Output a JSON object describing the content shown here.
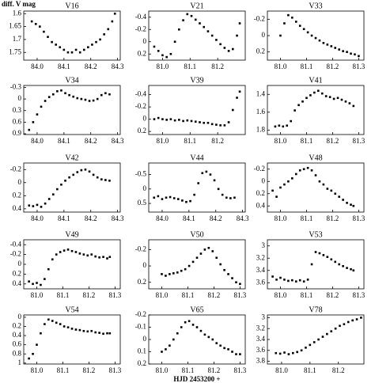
{
  "chart_data": [
    {
      "type": "scatter",
      "title": "V16",
      "ylabel": "diff. V mag",
      "color": "#000000",
      "x": [
        83.98,
        83.995,
        84.01,
        84.025,
        84.04,
        84.055,
        84.07,
        84.085,
        84.1,
        84.115,
        84.13,
        84.145,
        84.16,
        84.175,
        84.19,
        84.205,
        84.22,
        84.235,
        84.25,
        84.265,
        84.28,
        84.29
      ],
      "values": [
        1.63,
        1.64,
        1.65,
        1.67,
        1.69,
        1.71,
        1.72,
        1.73,
        1.74,
        1.75,
        1.75,
        1.74,
        1.75,
        1.74,
        1.73,
        1.72,
        1.71,
        1.7,
        1.68,
        1.66,
        1.63,
        1.6
      ],
      "xlim": [
        83.95,
        84.31
      ],
      "xticks": [
        {
          "value": 84,
          "label": "84.0"
        },
        84.1,
        84.2,
        84.3
      ],
      "ylim": [
        1.78,
        1.59
      ],
      "yticks": [
        1.6,
        1.65,
        1.7,
        1.75
      ]
    },
    {
      "type": "scatter",
      "title": "V21",
      "color": "#000000",
      "x": [
        80.97,
        80.985,
        81.0,
        81.015,
        81.03,
        81.045,
        81.06,
        81.075,
        81.09,
        81.105,
        81.12,
        81.135,
        81.15,
        81.165,
        81.18,
        81.195,
        81.21,
        81.225,
        81.24,
        81.255,
        81.27,
        81.28
      ],
      "values": [
        0.08,
        0.15,
        0.22,
        0.25,
        0.2,
        0.0,
        -0.2,
        -0.35,
        -0.45,
        -0.42,
        -0.36,
        -0.3,
        -0.24,
        -0.17,
        -0.1,
        -0.03,
        0.04,
        0.1,
        0.15,
        0.12,
        -0.1,
        -0.3
      ],
      "xlim": [
        80.95,
        81.3
      ],
      "xticks": [
        {
          "value": 81,
          "label": "81.0"
        },
        81.1,
        81.2
      ],
      "ylim": [
        0.3,
        -0.5
      ],
      "yticks": [
        -0.4,
        -0.2,
        0,
        0.2
      ]
    },
    {
      "type": "scatter",
      "title": "V33",
      "color": "#000000",
      "x": [
        81.0,
        81.015,
        81.03,
        81.045,
        81.06,
        81.075,
        81.09,
        81.105,
        81.12,
        81.135,
        81.15,
        81.165,
        81.18,
        81.195,
        81.21,
        81.225,
        81.24,
        81.255,
        81.27,
        81.285,
        81.3
      ],
      "values": [
        0.0,
        -0.15,
        -0.25,
        -0.22,
        -0.17,
        -0.12,
        -0.08,
        -0.04,
        0.0,
        0.03,
        0.06,
        0.09,
        0.11,
        0.13,
        0.15,
        0.17,
        0.19,
        0.2,
        0.22,
        0.23,
        0.25
      ],
      "xlim": [
        80.95,
        81.32
      ],
      "xticks": [
        {
          "value": 81,
          "label": "81.0"
        },
        81.1,
        81.2,
        81.3
      ],
      "ylim": [
        0.3,
        -0.3
      ],
      "yticks": [
        -0.2,
        0,
        0.2
      ]
    },
    {
      "type": "scatter",
      "title": "V34",
      "color": "#000000",
      "x": [
        83.97,
        83.985,
        84.0,
        84.015,
        84.03,
        84.045,
        84.06,
        84.075,
        84.09,
        84.105,
        84.12,
        84.135,
        84.15,
        84.165,
        84.18,
        84.195,
        84.21,
        84.225,
        84.24,
        84.255,
        84.27
      ],
      "values": [
        0.8,
        0.6,
        0.4,
        0.2,
        0.05,
        -0.05,
        -0.12,
        -0.2,
        -0.22,
        -0.15,
        -0.1,
        -0.06,
        -0.02,
        0.0,
        0.02,
        0.05,
        0.04,
        0.0,
        -0.1,
        -0.15,
        -0.12
      ],
      "xlim": [
        83.95,
        84.31
      ],
      "xticks": [
        {
          "value": 84,
          "label": "84.0"
        },
        84.1,
        84.2,
        84.3
      ],
      "ylim": [
        0.92,
        -0.35
      ],
      "yticks": [
        -0.3,
        0,
        0.3,
        0.6,
        0.9
      ]
    },
    {
      "type": "scatter",
      "title": "V39",
      "color": "#000000",
      "x": [
        80.97,
        80.985,
        81.0,
        81.015,
        81.03,
        81.045,
        81.06,
        81.075,
        81.09,
        81.105,
        81.12,
        81.135,
        81.15,
        81.165,
        81.18,
        81.195,
        81.21,
        81.225,
        81.24,
        81.255,
        81.27,
        81.28
      ],
      "values": [
        0.0,
        -0.02,
        0.0,
        0.01,
        0.0,
        0.02,
        0.01,
        0.03,
        0.02,
        0.03,
        0.04,
        0.05,
        0.06,
        0.06,
        0.08,
        0.09,
        0.1,
        0.1,
        0.05,
        -0.15,
        -0.35,
        -0.45
      ],
      "xlim": [
        80.95,
        81.3
      ],
      "xticks": [
        {
          "value": 81,
          "label": "81.0"
        },
        81.1,
        81.2
      ],
      "ylim": [
        0.25,
        -0.55
      ],
      "yticks": [
        -0.4,
        -0.2,
        0,
        0.2
      ]
    },
    {
      "type": "scatter",
      "title": "V41",
      "color": "#000000",
      "x": [
        80.98,
        80.995,
        81.01,
        81.025,
        81.04,
        81.055,
        81.07,
        81.085,
        81.1,
        81.115,
        81.13,
        81.145,
        81.16,
        81.175,
        81.19,
        81.205,
        81.22,
        81.235,
        81.25,
        81.265,
        81.28
      ],
      "values": [
        1.76,
        1.75,
        1.76,
        1.75,
        1.7,
        1.58,
        1.52,
        1.48,
        1.44,
        1.41,
        1.38,
        1.36,
        1.39,
        1.42,
        1.43,
        1.45,
        1.44,
        1.46,
        1.48,
        1.5,
        1.53
      ],
      "xlim": [
        80.95,
        81.32
      ],
      "xticks": [
        {
          "value": 81,
          "label": "81.0"
        },
        81.1,
        81.2,
        81.3
      ],
      "ylim": [
        1.85,
        1.3
      ],
      "yticks": [
        1.4,
        1.6,
        1.8
      ]
    },
    {
      "type": "scatter",
      "title": "V42",
      "color": "#000000",
      "x": [
        83.97,
        83.985,
        84.0,
        84.015,
        84.03,
        84.045,
        84.06,
        84.075,
        84.09,
        84.105,
        84.12,
        84.135,
        84.15,
        84.165,
        84.18,
        84.195,
        84.21,
        84.225,
        84.24,
        84.255,
        84.27
      ],
      "values": [
        0.35,
        0.36,
        0.34,
        0.37,
        0.32,
        0.25,
        0.18,
        0.1,
        0.03,
        -0.03,
        -0.08,
        -0.12,
        -0.16,
        -0.19,
        -0.2,
        -0.17,
        -0.12,
        -0.08,
        -0.05,
        -0.04,
        -0.03
      ],
      "xlim": [
        83.95,
        84.31
      ],
      "xticks": [
        {
          "value": 84,
          "label": "84.0"
        },
        84.1,
        84.2,
        84.3
      ],
      "ylim": [
        0.45,
        -0.3
      ],
      "yticks": [
        -0.2,
        0,
        0.2,
        0.4
      ]
    },
    {
      "type": "scatter",
      "title": "V44",
      "color": "#000000",
      "x": [
        83.97,
        83.985,
        84.0,
        84.015,
        84.03,
        84.045,
        84.06,
        84.075,
        84.09,
        84.105,
        84.12,
        84.135,
        84.15,
        84.165,
        84.18,
        84.195,
        84.21,
        84.225,
        84.24,
        84.255,
        84.27
      ],
      "values": [
        0.3,
        0.25,
        0.35,
        0.3,
        0.28,
        0.32,
        0.35,
        0.4,
        0.45,
        0.42,
        0.2,
        -0.2,
        -0.55,
        -0.6,
        -0.5,
        -0.3,
        0.0,
        0.2,
        0.3,
        0.32,
        0.3
      ],
      "xlim": [
        83.95,
        84.31
      ],
      "xticks": [
        {
          "value": 84,
          "label": "84.0"
        },
        84.1,
        84.2,
        84.3
      ],
      "ylim": [
        0.8,
        -0.9
      ],
      "yticks": [
        -0.5,
        0,
        0.5
      ]
    },
    {
      "type": "scatter",
      "title": "V48",
      "color": "#000000",
      "x": [
        80.97,
        80.985,
        81.0,
        81.015,
        81.03,
        81.045,
        81.06,
        81.075,
        81.09,
        81.105,
        81.12,
        81.135,
        81.15,
        81.165,
        81.18,
        81.195,
        81.21,
        81.225,
        81.24,
        81.255,
        81.27,
        81.28
      ],
      "values": [
        0.15,
        0.25,
        0.1,
        0.05,
        0.0,
        -0.05,
        -0.12,
        -0.18,
        -0.2,
        -0.22,
        -0.18,
        -0.1,
        0.0,
        0.05,
        0.12,
        0.15,
        0.2,
        0.25,
        0.3,
        0.35,
        0.38,
        0.4
      ],
      "xlim": [
        80.95,
        81.32
      ],
      "xticks": [
        {
          "value": 81,
          "label": "81.0"
        },
        81.1,
        81.2,
        81.3
      ],
      "ylim": [
        0.5,
        -0.3
      ],
      "yticks": [
        -0.2,
        0,
        0.2,
        0.4
      ]
    },
    {
      "type": "scatter",
      "title": "V49",
      "color": "#000000",
      "x": [
        80.97,
        80.985,
        81.0,
        81.015,
        81.03,
        81.045,
        81.06,
        81.075,
        81.09,
        81.105,
        81.12,
        81.135,
        81.15,
        81.165,
        81.18,
        81.195,
        81.21,
        81.225,
        81.24,
        81.255,
        81.27,
        81.28
      ],
      "values": [
        0.35,
        0.4,
        0.38,
        0.42,
        0.3,
        0.1,
        -0.1,
        -0.2,
        -0.25,
        -0.28,
        -0.3,
        -0.27,
        -0.25,
        -0.22,
        -0.2,
        -0.18,
        -0.2,
        -0.16,
        -0.14,
        -0.15,
        -0.12,
        -0.15
      ],
      "xlim": [
        80.95,
        81.32
      ],
      "xticks": [
        {
          "value": 81,
          "label": "81.0"
        },
        81.1,
        81.2,
        81.3
      ],
      "ylim": [
        0.5,
        -0.5
      ],
      "yticks": [
        -0.4,
        -0.2,
        0,
        0.2,
        0.4
      ]
    },
    {
      "type": "scatter",
      "title": "V50",
      "color": "#000000",
      "x": [
        81.0,
        81.015,
        81.03,
        81.045,
        81.06,
        81.075,
        81.09,
        81.105,
        81.12,
        81.135,
        81.15,
        81.165,
        81.18,
        81.195,
        81.21,
        81.225,
        81.24,
        81.255,
        81.27,
        81.285,
        81.3
      ],
      "values": [
        0.1,
        0.12,
        0.1,
        0.09,
        0.08,
        0.06,
        0.04,
        0.0,
        -0.05,
        -0.1,
        -0.15,
        -0.2,
        -0.22,
        -0.18,
        -0.1,
        -0.02,
        0.05,
        0.1,
        0.15,
        0.2,
        0.22
      ],
      "xlim": [
        80.95,
        81.32
      ],
      "xticks": [
        {
          "value": 81,
          "label": "81.0"
        },
        81.1,
        81.2,
        81.3
      ],
      "ylim": [
        0.28,
        -0.32
      ],
      "yticks": [
        -0.2,
        0,
        0.2
      ]
    },
    {
      "type": "scatter",
      "title": "V53",
      "color": "#000000",
      "x": [
        80.97,
        80.985,
        81.0,
        81.015,
        81.03,
        81.045,
        81.06,
        81.075,
        81.09,
        81.105,
        81.12,
        81.135,
        81.15,
        81.165,
        81.18,
        81.195,
        81.21,
        81.225,
        81.24,
        81.255,
        81.27,
        81.28
      ],
      "values": [
        3.5,
        3.55,
        3.52,
        3.55,
        3.57,
        3.56,
        3.58,
        3.56,
        3.58,
        3.55,
        3.3,
        3.1,
        3.12,
        3.15,
        3.18,
        3.22,
        3.26,
        3.3,
        3.33,
        3.36,
        3.38,
        3.4
      ],
      "xlim": [
        80.95,
        81.32
      ],
      "xticks": [
        {
          "value": 81,
          "label": "81.0"
        },
        81.1,
        81.2,
        81.3
      ],
      "ylim": [
        3.7,
        2.9
      ],
      "yticks": [
        3,
        3.2,
        3.4,
        3.6
      ]
    },
    {
      "type": "scatter",
      "title": "V54",
      "color": "#000000",
      "x": [
        80.97,
        80.985,
        81.0,
        81.015,
        81.03,
        81.045,
        81.06,
        81.075,
        81.09,
        81.105,
        81.12,
        81.135,
        81.15,
        81.165,
        81.18,
        81.195,
        81.21,
        81.225,
        81.24,
        81.255,
        81.27,
        81.28
      ],
      "values": [
        0.9,
        0.8,
        0.6,
        0.35,
        0.15,
        0.05,
        0.08,
        0.12,
        0.15,
        0.2,
        0.22,
        0.25,
        0.27,
        0.28,
        0.3,
        0.31,
        0.3,
        0.33,
        0.34,
        0.36,
        0.35,
        0.35
      ],
      "xlim": [
        80.95,
        81.32
      ],
      "xticks": [
        {
          "value": 81,
          "label": "81.0"
        },
        81.1,
        81.2,
        81.3
      ],
      "ylim": [
        1.02,
        -0.05
      ],
      "yticks": [
        0,
        0.2,
        0.4,
        0.6,
        0.8,
        1
      ]
    },
    {
      "type": "scatter",
      "title": "V65",
      "xlabel": "HJD 2453200 +",
      "color": "#000000",
      "x": [
        81.0,
        81.015,
        81.03,
        81.045,
        81.06,
        81.075,
        81.09,
        81.105,
        81.12,
        81.135,
        81.15,
        81.165,
        81.18,
        81.195,
        81.21,
        81.225,
        81.24,
        81.255,
        81.27,
        81.285,
        81.3
      ],
      "values": [
        0.1,
        0.08,
        0.05,
        0.0,
        -0.05,
        -0.1,
        -0.14,
        -0.15,
        -0.12,
        -0.1,
        -0.07,
        -0.04,
        -0.02,
        0.0,
        0.03,
        0.05,
        0.07,
        0.08,
        0.1,
        0.12,
        0.12
      ],
      "xlim": [
        80.95,
        81.32
      ],
      "xticks": [
        {
          "value": 81,
          "label": "81.0"
        },
        81.1,
        81.2,
        81.3
      ],
      "ylim": [
        0.2,
        -0.2
      ],
      "yticks": [
        -0.2,
        -0.1,
        0,
        0.1,
        0.2
      ]
    },
    {
      "type": "scatter",
      "title": "V78",
      "color": "#000000",
      "x": [
        80.98,
        80.995,
        81.01,
        81.025,
        81.04,
        81.055,
        81.07,
        81.085,
        81.1,
        81.115,
        81.13,
        81.145,
        81.16,
        81.175,
        81.19,
        81.205,
        81.22,
        81.235,
        81.25,
        81.265,
        81.28
      ],
      "values": [
        3.65,
        3.66,
        3.64,
        3.67,
        3.65,
        3.63,
        3.6,
        3.55,
        3.5,
        3.45,
        3.4,
        3.35,
        3.3,
        3.25,
        3.2,
        3.15,
        3.12,
        3.08,
        3.05,
        3.03,
        3.0
      ],
      "xlim": [
        80.95,
        81.29
      ],
      "xticks": [
        {
          "value": 81,
          "label": "81.0"
        },
        81.1,
        81.2
      ],
      "ylim": [
        3.85,
        2.95
      ],
      "yticks": [
        3,
        3.2,
        3.4,
        3.6,
        3.8
      ]
    }
  ]
}
